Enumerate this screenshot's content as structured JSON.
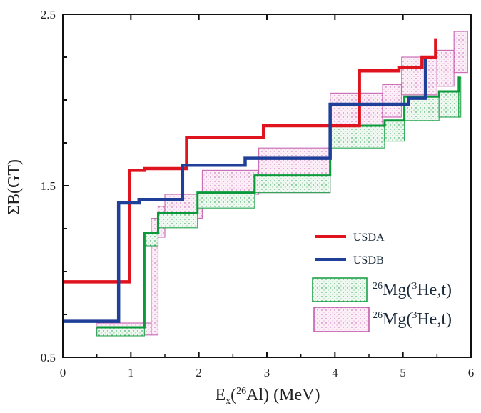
{
  "chart_data": {
    "type": "line",
    "title": "",
    "xlabel": {
      "main": "E",
      "sub": "x",
      "paren_open": "(",
      "sup": "26",
      "element": "Al",
      "rest": ") (MeV)"
    },
    "ylabel": "ΣB(GT)",
    "xlim": [
      0,
      6
    ],
    "ylim": [
      0.5,
      2.5
    ],
    "x_ticks": [
      "0",
      "1",
      "2",
      "3",
      "4",
      "5",
      "6"
    ],
    "y_ticks": [
      "0.5",
      "1.5",
      "2.5"
    ],
    "grid": false,
    "legend_position": "bottom-right",
    "series": [
      {
        "name": "USDA",
        "kind": "step",
        "color": "#e0141e",
        "x": [
          0,
          0.98,
          1.2,
          1.82,
          2.95,
          4.36,
          4.94,
          5.28,
          5.48
        ],
        "y": [
          0.94,
          1.59,
          1.6,
          1.78,
          1.85,
          2.17,
          2.19,
          2.25,
          2.36
        ]
      },
      {
        "name": "USDB",
        "kind": "step",
        "color": "#1f3f99",
        "x": [
          0.02,
          0.82,
          1.12,
          1.76,
          2.68,
          3.93,
          5.08,
          5.33
        ],
        "y": [
          0.71,
          1.4,
          1.42,
          1.62,
          1.66,
          1.975,
          2.01,
          2.24
        ]
      },
      {
        "name": "26Mg(3He,t)",
        "kind": "band",
        "color": "#0a9a3a",
        "edges": [
          0.5,
          1.2,
          1.4,
          1.98,
          2.82,
          3.93,
          4.73,
          5.02,
          5.53,
          5.82,
          5.85
        ],
        "upper": [
          0.675,
          1.225,
          1.34,
          1.46,
          1.56,
          1.85,
          1.88,
          2.02,
          2.05,
          2.13
        ],
        "lower": [
          0.625,
          1.15,
          1.255,
          1.37,
          1.46,
          1.72,
          1.76,
          1.88,
          1.9,
          1.9
        ]
      },
      {
        "name": "26Mg(3He,t)",
        "kind": "band",
        "color": "#c050a8",
        "edges": [
          0.49,
          1.3,
          1.4,
          1.5,
          2.05,
          2.88,
          3.93,
          4.7,
          4.98,
          5.5,
          5.75,
          5.95
        ],
        "upper": [
          0.7,
          1.31,
          1.38,
          1.45,
          1.59,
          1.72,
          2.04,
          2.09,
          2.25,
          2.29,
          2.4
        ],
        "lower": [
          0.63,
          0.63,
          1.2,
          1.31,
          1.45,
          1.46,
          1.85,
          1.9,
          2.03,
          2.08,
          2.16
        ]
      }
    ],
    "legend": [
      {
        "label": "USDA"
      },
      {
        "label": "USDB"
      },
      {
        "sup1": "26",
        "mid": "Mg(",
        "sup2": "3",
        "end": "He,t)"
      },
      {
        "sup1": "26",
        "mid": "Mg(",
        "sup2": "3",
        "end": "He,t)"
      }
    ]
  }
}
